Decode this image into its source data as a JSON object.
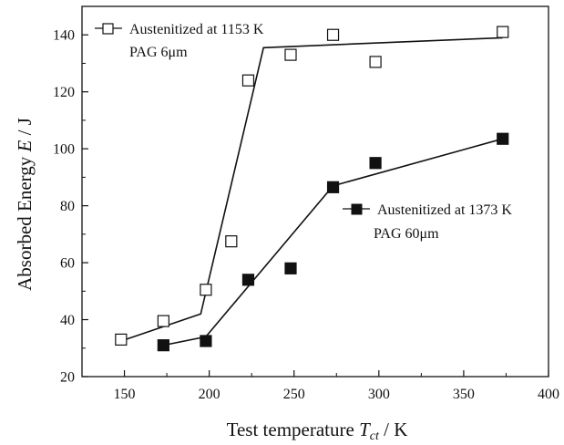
{
  "chart_data": {
    "type": "scatter",
    "xlabel_main": "Test temperature ",
    "xlabel_sym": "T",
    "xlabel_sub": "ct",
    "xlabel_unit": " / K",
    "ylabel_main": "Absorbed Energy ",
    "ylabel_sym": "E",
    "ylabel_unit": " / J",
    "xlim": [
      125,
      400
    ],
    "ylim": [
      20,
      150
    ],
    "x_ticks": [
      150,
      200,
      250,
      300,
      350,
      400
    ],
    "x_tick_labels": [
      "150",
      "200",
      "250",
      "300",
      "350",
      "400"
    ],
    "y_ticks": [
      20,
      40,
      60,
      80,
      100,
      120,
      140
    ],
    "y_tick_labels": [
      "20",
      "40",
      "60",
      "80",
      "100",
      "120",
      "140"
    ],
    "grid": false,
    "series": [
      {
        "name": "Austenitized at 1153 K",
        "note": "PAG 6μm",
        "marker": "open-square",
        "points": [
          {
            "x": 148,
            "y": 33
          },
          {
            "x": 173,
            "y": 39.5
          },
          {
            "x": 198,
            "y": 50.5
          },
          {
            "x": 213,
            "y": 67.5
          },
          {
            "x": 223,
            "y": 124
          },
          {
            "x": 248,
            "y": 133
          },
          {
            "x": 273,
            "y": 140
          },
          {
            "x": 298,
            "y": 130.5
          },
          {
            "x": 373,
            "y": 141
          }
        ],
        "fit_line": [
          {
            "x": 148,
            "y": 32.5
          },
          {
            "x": 195,
            "y": 42
          },
          {
            "x": 232,
            "y": 135.5
          },
          {
            "x": 373,
            "y": 139
          }
        ]
      },
      {
        "name": "Austenitized at 1373 K",
        "note": "PAG 60μm",
        "marker": "filled-square",
        "points": [
          {
            "x": 173,
            "y": 31
          },
          {
            "x": 198,
            "y": 32.5
          },
          {
            "x": 223,
            "y": 54
          },
          {
            "x": 248,
            "y": 58
          },
          {
            "x": 273,
            "y": 86.5
          },
          {
            "x": 298,
            "y": 95
          },
          {
            "x": 373,
            "y": 103.5
          }
        ],
        "fit_line": [
          {
            "x": 173,
            "y": 31
          },
          {
            "x": 198,
            "y": 34
          },
          {
            "x": 273,
            "y": 87
          },
          {
            "x": 373,
            "y": 103.5
          }
        ]
      }
    ]
  }
}
